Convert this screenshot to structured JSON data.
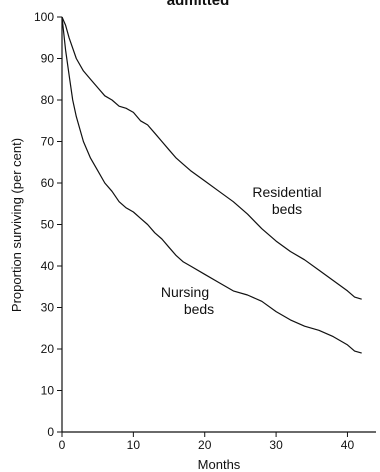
{
  "chart_data": {
    "type": "line",
    "title": "admitted",
    "xlabel": "Months",
    "ylabel": "Proportion surviving (per cent)",
    "xlim": [
      0,
      44
    ],
    "ylim": [
      0,
      100
    ],
    "xticks": [
      0,
      10,
      20,
      30,
      40
    ],
    "yticks": [
      0,
      10,
      20,
      30,
      40,
      50,
      60,
      70,
      80,
      90,
      100
    ],
    "grid": false,
    "legend": "none",
    "series": [
      {
        "name": "Residential beds",
        "color": "#111111",
        "x": [
          0,
          0.5,
          1,
          2,
          3,
          4,
          5,
          6,
          7,
          8,
          9,
          10,
          11,
          12,
          13,
          14,
          15,
          16,
          17,
          18,
          20,
          22,
          24,
          26,
          28,
          30,
          32,
          34,
          36,
          38,
          40,
          41,
          42
        ],
        "y": [
          100,
          98,
          95,
          90,
          87,
          85,
          83,
          81,
          80,
          78.5,
          78,
          77,
          75,
          74,
          72,
          70,
          68,
          66,
          64.5,
          63,
          60.5,
          58,
          55.5,
          52.5,
          49,
          46,
          43.5,
          41.5,
          39,
          36.5,
          34,
          32.5,
          32
        ]
      },
      {
        "name": "Nursing beds",
        "color": "#111111",
        "x": [
          0,
          0.25,
          0.5,
          1,
          1.5,
          2,
          3,
          4,
          5,
          6,
          7,
          8,
          9,
          10,
          11,
          12,
          13,
          14,
          15,
          16,
          17,
          18,
          20,
          22,
          24,
          26,
          28,
          30,
          32,
          34,
          36,
          38,
          40,
          41,
          42
        ],
        "y": [
          100,
          96,
          92,
          86,
          80,
          76,
          70,
          66,
          63,
          60,
          58,
          55.5,
          54,
          53,
          51.5,
          50,
          48,
          46.5,
          44.5,
          42.5,
          41,
          40,
          38,
          36,
          34,
          33,
          31.5,
          29,
          27,
          25.5,
          24.5,
          23,
          21,
          19.5,
          19
        ]
      }
    ],
    "annotations": [
      {
        "text_lines": [
          "Residential",
          "beds"
        ],
        "series": "Residential beds"
      },
      {
        "text_lines": [
          "Nursing",
          "beds"
        ],
        "series": "Nursing beds"
      }
    ]
  }
}
